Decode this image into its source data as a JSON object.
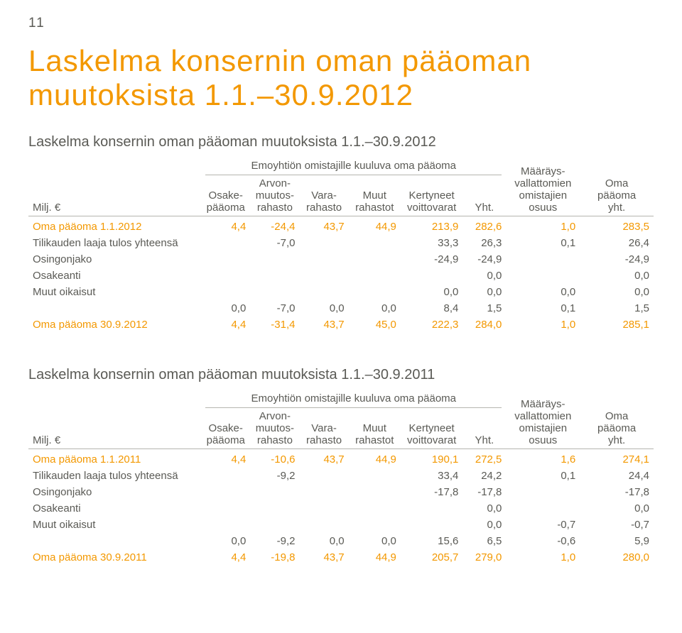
{
  "page": {
    "number": "11"
  },
  "title": "Laskelma konsernin oman pääoman muutoksista 1.1.–30.9.2012",
  "headers": {
    "unit": "Milj. €",
    "c1": "Osake-\npääoma",
    "c2": "Arvon-\nmuutos-\nrahasto",
    "c3": "Vara-\nrahasto",
    "c4": "Muut\nrahastot",
    "c5": "Kertyneet\nvoittovarat",
    "c6": "Yht.",
    "c7": "Määräys-\nvallattomien\nomistajien\nosuus",
    "c8": "Oma\npääoma\nyht.",
    "cat": "Emoyhtiön omistajille kuuluva oma pääoma"
  },
  "table2012": {
    "subtitle": "Laskelma konsernin oman pääoman muutoksista 1.1.–30.9.2012",
    "rows": [
      {
        "orange": true,
        "label": "Oma pääoma 1.1.2012",
        "c1": "4,4",
        "c2": "-24,4",
        "c3": "43,7",
        "c4": "44,9",
        "c5": "213,9",
        "c6": "282,6",
        "c7": "1,0",
        "c8": "283,5"
      },
      {
        "label": "Tilikauden laaja tulos yhteensä",
        "c1": "",
        "c2": "-7,0",
        "c3": "",
        "c4": "",
        "c5": "33,3",
        "c6": "26,3",
        "c7": "0,1",
        "c8": "26,4"
      },
      {
        "label": "Osingonjako",
        "c1": "",
        "c2": "",
        "c3": "",
        "c4": "",
        "c5": "-24,9",
        "c6": "-24,9",
        "c7": "",
        "c8": "-24,9"
      },
      {
        "label": "Osakeanti",
        "c1": "",
        "c2": "",
        "c3": "",
        "c4": "",
        "c5": "",
        "c6": "0,0",
        "c7": "",
        "c8": "0,0"
      },
      {
        "label": "Muut oikaisut",
        "c1": "",
        "c2": "",
        "c3": "",
        "c4": "",
        "c5": "0,0",
        "c6": "0,0",
        "c7": "0,0",
        "c8": "0,0"
      },
      {
        "label": "",
        "c1": "0,0",
        "c2": "-7,0",
        "c3": "0,0",
        "c4": "0,0",
        "c5": "8,4",
        "c6": "1,5",
        "c7": "0,1",
        "c8": "1,5"
      },
      {
        "orange": true,
        "label": "Oma pääoma 30.9.2012",
        "c1": "4,4",
        "c2": "-31,4",
        "c3": "43,7",
        "c4": "45,0",
        "c5": "222,3",
        "c6": "284,0",
        "c7": "1,0",
        "c8": "285,1"
      }
    ]
  },
  "table2011": {
    "subtitle": "Laskelma konsernin oman pääoman muutoksista 1.1.–30.9.2011",
    "rows": [
      {
        "orange": true,
        "label": "Oma pääoma 1.1.2011",
        "c1": "4,4",
        "c2": "-10,6",
        "c3": "43,7",
        "c4": "44,9",
        "c5": "190,1",
        "c6": "272,5",
        "c7": "1,6",
        "c8": "274,1"
      },
      {
        "label": "Tilikauden laaja tulos yhteensä",
        "c1": "",
        "c2": "-9,2",
        "c3": "",
        "c4": "",
        "c5": "33,4",
        "c6": "24,2",
        "c7": "0,1",
        "c8": "24,4"
      },
      {
        "label": "Osingonjako",
        "c1": "",
        "c2": "",
        "c3": "",
        "c4": "",
        "c5": "-17,8",
        "c6": "-17,8",
        "c7": "",
        "c8": "-17,8"
      },
      {
        "label": "Osakeanti",
        "c1": "",
        "c2": "",
        "c3": "",
        "c4": "",
        "c5": "",
        "c6": "0,0",
        "c7": "",
        "c8": "0,0"
      },
      {
        "label": "Muut oikaisut",
        "c1": "",
        "c2": "",
        "c3": "",
        "c4": "",
        "c5": "",
        "c6": "0,0",
        "c7": "-0,7",
        "c8": "-0,7"
      },
      {
        "label": "",
        "c1": "0,0",
        "c2": "-9,2",
        "c3": "0,0",
        "c4": "0,0",
        "c5": "15,6",
        "c6": "6,5",
        "c7": "-0,6",
        "c8": "5,9"
      },
      {
        "orange": true,
        "label": "Oma pääoma 30.9.2011",
        "c1": "4,4",
        "c2": "-19,8",
        "c3": "43,7",
        "c4": "44,9",
        "c5": "205,7",
        "c6": "279,0",
        "c7": "1,0",
        "c8": "280,0"
      }
    ]
  },
  "style": {
    "col_widths": [
      "239",
      "68",
      "68",
      "68",
      "72",
      "86",
      "60",
      "102",
      "102"
    ]
  }
}
